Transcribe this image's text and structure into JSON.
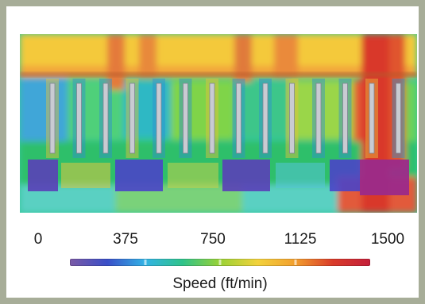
{
  "legend": {
    "ticks": [
      "0",
      "375",
      "750",
      "1125",
      "1500"
    ],
    "label": "Speed (ft/min)",
    "gradient": [
      "#7b5aa6",
      "#3a4fc8",
      "#33b3e6",
      "#2fc38a",
      "#9ad235",
      "#f2d23c",
      "#f29f2e",
      "#d93b2a",
      "#c41f3a"
    ]
  },
  "plot": {
    "rack_rows": 14
  }
}
